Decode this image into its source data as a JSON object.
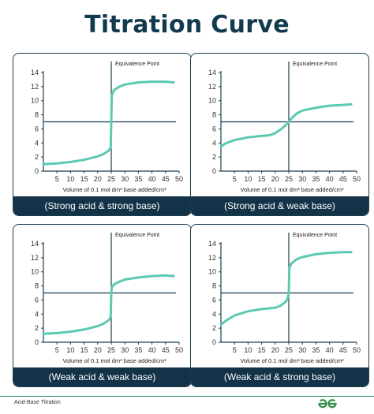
{
  "title": "Titration Curve",
  "footer": "Acid-Base Titration",
  "colors": {
    "curve": "#5cc9b1",
    "frame": "#1e3c50",
    "caption_bg": "#143349",
    "title": "#123a4f",
    "logo": "#2f8d46"
  },
  "chart_data": [
    {
      "type": "line",
      "caption": "(Strong acid & strong base)",
      "xlabel": "Volume of 0.1 mol dm³ base added/cm³",
      "annotation": "Equivalence Point",
      "equivalence": {
        "x": 25,
        "y": 7
      },
      "xlim": [
        0,
        50
      ],
      "ylim": [
        0,
        14
      ],
      "xticks": [
        5,
        10,
        15,
        20,
        25,
        30,
        35,
        40,
        45,
        50
      ],
      "yticks": [
        0,
        2,
        4,
        6,
        8,
        10,
        12,
        14
      ],
      "series": [
        {
          "x": [
            0,
            5,
            10,
            15,
            20,
            22,
            24,
            24.8,
            25,
            25.2,
            26,
            28,
            30,
            35,
            40,
            45,
            48
          ],
          "y": [
            1.0,
            1.1,
            1.3,
            1.6,
            2.1,
            2.4,
            2.9,
            3.3,
            7,
            10.8,
            11.5,
            12.0,
            12.3,
            12.6,
            12.7,
            12.7,
            12.6
          ]
        }
      ]
    },
    {
      "type": "line",
      "caption": "(Strong acid & weak base)",
      "xlabel": "Volume of 0.1 mol dm³ base added/cm³",
      "annotation": "Equivalence Point",
      "equivalence": {
        "x": 25,
        "y": 7
      },
      "xlim": [
        0,
        50
      ],
      "ylim": [
        0,
        14
      ],
      "xticks": [
        5,
        10,
        15,
        20,
        25,
        30,
        35,
        40,
        45,
        50
      ],
      "yticks": [
        0,
        2,
        4,
        6,
        8,
        10,
        12,
        14
      ],
      "series": [
        {
          "x": [
            0,
            2,
            5,
            10,
            15,
            18,
            20,
            22,
            24,
            25,
            26,
            28,
            30,
            35,
            40,
            45,
            48
          ],
          "y": [
            3.5,
            4.0,
            4.4,
            4.8,
            5.0,
            5.1,
            5.4,
            5.9,
            6.6,
            7.0,
            7.5,
            8.2,
            8.6,
            9.0,
            9.3,
            9.4,
            9.5
          ]
        }
      ]
    },
    {
      "type": "line",
      "caption": "(Weak acid & weak base)",
      "xlabel": "Volume of 0.1 mol dm³ base added/cm³",
      "annotation": "Equivalence Point",
      "equivalence": {
        "x": 25,
        "y": 7
      },
      "xlim": [
        0,
        50
      ],
      "ylim": [
        0,
        14
      ],
      "xticks": [
        5,
        10,
        15,
        20,
        25,
        30,
        35,
        40,
        45,
        50
      ],
      "yticks": [
        0,
        2,
        4,
        6,
        8,
        10,
        12,
        14
      ],
      "series": [
        {
          "x": [
            0,
            5,
            10,
            15,
            20,
            22,
            24,
            24.8,
            25,
            25.2,
            26,
            28,
            30,
            35,
            40,
            45,
            48
          ],
          "y": [
            1.2,
            1.3,
            1.5,
            1.8,
            2.3,
            2.6,
            3.1,
            3.6,
            7,
            7.8,
            8.2,
            8.6,
            8.9,
            9.2,
            9.4,
            9.5,
            9.4
          ]
        }
      ]
    },
    {
      "type": "line",
      "caption": "(Weak acid & strong base)",
      "xlabel": "Volume of 0.1 mol dm³ base added/cm³",
      "annotation": "Equivalence Point",
      "equivalence": {
        "x": 25,
        "y": 7
      },
      "xlim": [
        0,
        50
      ],
      "ylim": [
        0,
        14
      ],
      "xticks": [
        5,
        10,
        15,
        20,
        25,
        30,
        35,
        40,
        45,
        50
      ],
      "yticks": [
        0,
        2,
        4,
        6,
        8,
        10,
        12,
        14
      ],
      "series": [
        {
          "x": [
            0,
            2,
            5,
            10,
            15,
            20,
            22,
            24,
            24.8,
            25,
            25.2,
            26,
            28,
            30,
            35,
            40,
            45,
            48
          ],
          "y": [
            2.5,
            3.1,
            3.8,
            4.4,
            4.7,
            4.9,
            5.2,
            5.8,
            6.5,
            7,
            10.6,
            11.2,
            11.8,
            12.1,
            12.5,
            12.7,
            12.8,
            12.8
          ]
        }
      ]
    }
  ]
}
